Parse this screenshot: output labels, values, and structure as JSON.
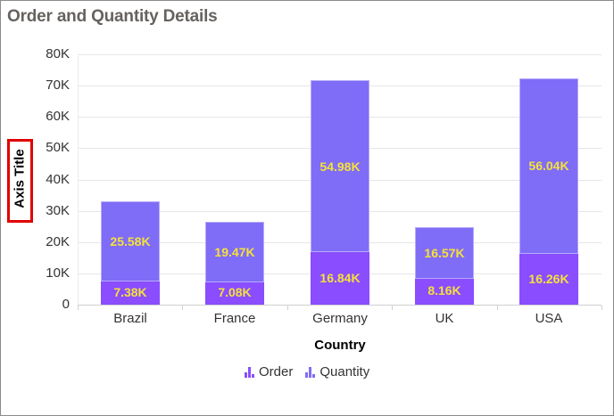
{
  "chart_data": {
    "type": "bar",
    "stacked": true,
    "title": "Order and Quantity Details",
    "xlabel": "Country",
    "ylabel": "Axis Title",
    "ylim": [
      0,
      80000
    ],
    "yticks": [
      "0",
      "10K",
      "20K",
      "30K",
      "40K",
      "50K",
      "60K",
      "70K",
      "80K"
    ],
    "categories": [
      "Brazil",
      "France",
      "Germany",
      "UK",
      "USA"
    ],
    "series": [
      {
        "name": "Order",
        "color": "#8a4dff",
        "values": [
          7380,
          7080,
          16840,
          8160,
          16260
        ],
        "labels": [
          "7.38K",
          "7.08K",
          "16.84K",
          "8.16K",
          "16.26K"
        ]
      },
      {
        "name": "Quantity",
        "color": "#7f6cf7",
        "values": [
          25580,
          19470,
          54980,
          16570,
          56040
        ],
        "labels": [
          "25.58K",
          "19.47K",
          "54.98K",
          "16.57K",
          "56.04K"
        ]
      }
    ],
    "grid": true,
    "legend_position": "bottom",
    "data_label_color": "#f5e13a"
  },
  "title": "Order and Quantity Details",
  "y_axis_title": "Axis Title",
  "x_axis_title": "Country",
  "yticks": [
    "0",
    "10K",
    "20K",
    "30K",
    "40K",
    "50K",
    "60K",
    "70K",
    "80K"
  ],
  "categories": [
    "Brazil",
    "France",
    "Germany",
    "UK",
    "USA"
  ],
  "order_labels": [
    "7.38K",
    "7.08K",
    "16.84K",
    "8.16K",
    "16.26K"
  ],
  "quantity_labels": [
    "25.58K",
    "19.47K",
    "54.98K",
    "16.57K",
    "56.04K"
  ],
  "legend": [
    {
      "label": "Order",
      "color": "#8a4dff"
    },
    {
      "label": "Quantity",
      "color": "#7f6cf7"
    }
  ]
}
